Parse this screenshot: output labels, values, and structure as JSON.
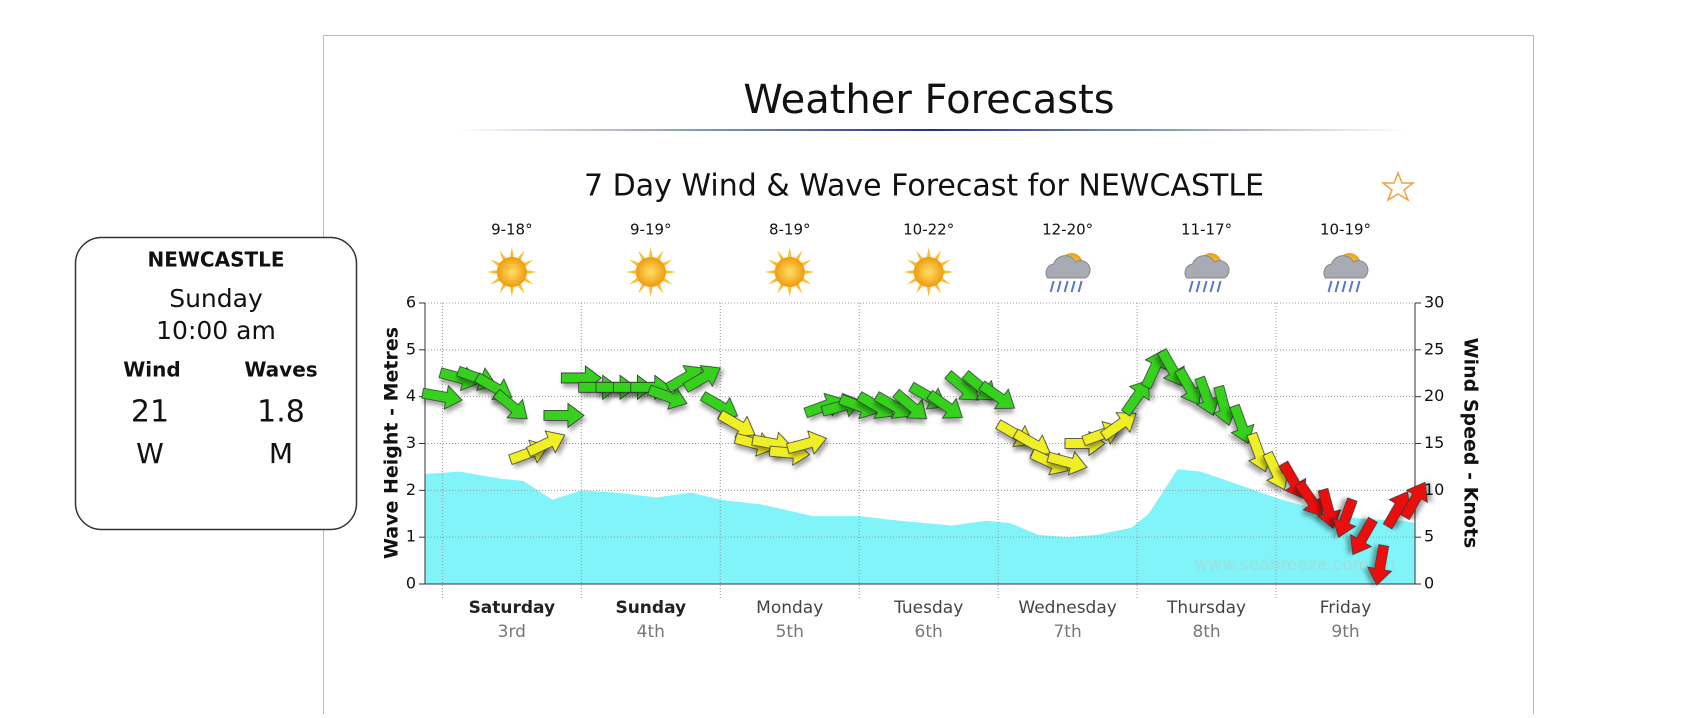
{
  "header": {
    "title": "Weather Forecasts"
  },
  "info_card": {
    "location": "NEWCASTLE",
    "day": "Sunday",
    "time": "10:00 am",
    "wind_label": "Wind",
    "waves_label": "Waves",
    "wind_speed": 21,
    "wave_height": 1.8,
    "wind_dir": "W",
    "wave_unit": "M"
  },
  "chart_data": {
    "type": "area",
    "title": "7 Day Wind & Wave Forecast for NEWCASTLE",
    "ylabel": "Wave Height - Metres",
    "y2label": "Wind Speed - Knots",
    "watermark": "www.seabreeze.com.au",
    "xlim": [
      -3,
      168
    ],
    "xticks": [
      0,
      24,
      48,
      72,
      96,
      120,
      144
    ],
    "ylim": [
      0,
      6
    ],
    "yticks": [
      0,
      1,
      2,
      3,
      4,
      5,
      6
    ],
    "y2lim": [
      0,
      30
    ],
    "y2ticks": [
      0,
      5,
      10,
      15,
      20,
      25,
      30
    ],
    "grid": true,
    "days": [
      {
        "name": "Saturday",
        "date": "3rd",
        "temp": "9-18°",
        "icon": "sunny",
        "bold": true
      },
      {
        "name": "Sunday",
        "date": "4th",
        "temp": "9-19°",
        "icon": "sunny",
        "bold": true
      },
      {
        "name": "Monday",
        "date": "5th",
        "temp": "8-19°",
        "icon": "sunny",
        "bold": false
      },
      {
        "name": "Tuesday",
        "date": "6th",
        "temp": "10-22°",
        "icon": "sunny",
        "bold": false
      },
      {
        "name": "Wednesday",
        "date": "7th",
        "temp": "12-20°",
        "icon": "showers",
        "bold": false
      },
      {
        "name": "Thursday",
        "date": "8th",
        "temp": "11-17°",
        "icon": "showers",
        "bold": false
      },
      {
        "name": "Friday",
        "date": "9th",
        "temp": "10-19°",
        "icon": "showers",
        "bold": false
      }
    ],
    "series": [
      {
        "color": "#80f4f8",
        "x": [
          -3,
          3,
          10,
          14,
          19,
          24,
          30,
          37,
          43,
          48,
          55,
          64,
          72,
          79,
          88,
          94,
          98,
          103,
          108,
          113,
          119,
          122,
          127,
          131,
          138,
          145,
          151,
          158,
          166,
          168
        ],
        "values": [
          2.35,
          2.4,
          2.25,
          2.2,
          1.8,
          2.0,
          1.95,
          1.85,
          1.95,
          1.8,
          1.7,
          1.45,
          1.45,
          1.35,
          1.25,
          1.35,
          1.3,
          1.05,
          1.0,
          1.05,
          1.2,
          1.5,
          2.45,
          2.4,
          2.1,
          1.8,
          1.6,
          1.4,
          1.35,
          1.3
        ]
      },
      {
        "axis": "y2",
        "x": [
          0,
          3,
          6,
          9,
          12,
          15,
          18,
          21,
          24,
          27,
          30,
          33,
          36,
          39,
          42,
          45,
          48,
          51,
          54,
          57,
          60,
          63,
          66,
          69,
          72,
          75,
          78,
          81,
          84,
          87,
          90,
          93,
          96,
          99,
          102,
          105,
          108,
          111,
          114,
          117,
          120,
          123,
          126,
          129,
          132,
          135,
          138,
          141,
          144,
          147,
          150,
          153,
          156,
          159,
          162,
          165,
          168
        ],
        "values": [
          20,
          22,
          22,
          21,
          19,
          14,
          15,
          18,
          22,
          21,
          21,
          21,
          21,
          20,
          22,
          22,
          19,
          17,
          15,
          15,
          14,
          15,
          19,
          19,
          19,
          19,
          19,
          19,
          20,
          19,
          21,
          21,
          20,
          16,
          15,
          13,
          13,
          15,
          16,
          17,
          20,
          23,
          23,
          21,
          20,
          19,
          17,
          14,
          12,
          11,
          9,
          8,
          7,
          5,
          2,
          8,
          9
        ],
        "directions": [
          10,
          15,
          20,
          30,
          40,
          -20,
          -25,
          0,
          0,
          0,
          0,
          0,
          0,
          20,
          -30,
          -30,
          30,
          30,
          15,
          10,
          5,
          -15,
          -20,
          -15,
          20,
          30,
          30,
          40,
          30,
          35,
          40,
          40,
          35,
          30,
          30,
          25,
          15,
          0,
          -20,
          -35,
          -55,
          -65,
          60,
          60,
          70,
          75,
          70,
          70,
          65,
          60,
          55,
          75,
          110,
          120,
          100,
          -60,
          -60
        ],
        "colors": [
          "#36d11f",
          "#36d11f",
          "#36d11f",
          "#36d11f",
          "#36d11f",
          "#f0ef25",
          "#f0ef25",
          "#36d11f",
          "#36d11f",
          "#36d11f",
          "#36d11f",
          "#36d11f",
          "#36d11f",
          "#36d11f",
          "#36d11f",
          "#36d11f",
          "#36d11f",
          "#f0ef25",
          "#f0ef25",
          "#f0ef25",
          "#f0ef25",
          "#f0ef25",
          "#36d11f",
          "#36d11f",
          "#36d11f",
          "#36d11f",
          "#36d11f",
          "#36d11f",
          "#36d11f",
          "#36d11f",
          "#36d11f",
          "#36d11f",
          "#36d11f",
          "#f0ef25",
          "#f0ef25",
          "#f0ef25",
          "#f0ef25",
          "#f0ef25",
          "#f0ef25",
          "#f0ef25",
          "#36d11f",
          "#36d11f",
          "#36d11f",
          "#36d11f",
          "#36d11f",
          "#36d11f",
          "#36d11f",
          "#f0ef25",
          "#f0ef25",
          "#ee1111",
          "#ee1111",
          "#ee1111",
          "#ee1111",
          "#ee1111",
          "#ee1111",
          "#ee1111",
          "#ee1111"
        ]
      }
    ]
  }
}
